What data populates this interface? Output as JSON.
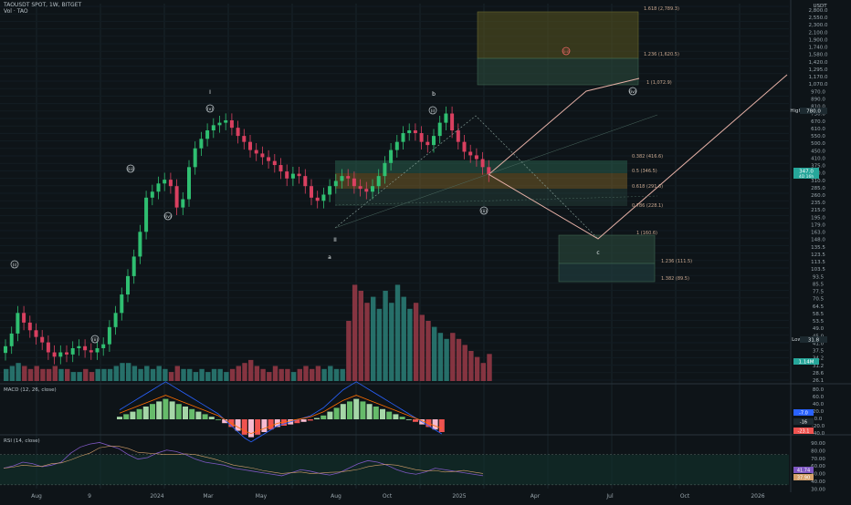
{
  "header": {
    "symbol_line": "TAOUSDT SPOT, 1W, BITGET",
    "volume_label": "Vol · TAO"
  },
  "colors": {
    "background": "#0e1418",
    "up": "#26a69a",
    "down": "#ef5350",
    "up_candle": "#2fbf71",
    "down_candle": "#d94060",
    "macd_line": "#2962ff",
    "signal_line": "#ff6d00",
    "rsi_line": "#7e57c2",
    "rsi_band": "#12352f",
    "wave_label": "#ff6b6b",
    "fib_green": "#2e6b55",
    "fib_orange": "#8a6a2a"
  },
  "axis": {
    "currency": "USDT",
    "price_ticks": [
      "2,800.0",
      "2,550.0",
      "2,300.0",
      "2,100.0",
      "1,900.0",
      "1,740.0",
      "1,580.0",
      "1,420.0",
      "1,295.0",
      "1,170.0",
      "1,070.0",
      "970.0",
      "890.0",
      "810.0",
      "730.0",
      "670.0",
      "610.0",
      "550.0",
      "500.0",
      "450.0",
      "410.0",
      "375.0",
      "340.0",
      "310.0",
      "285.0",
      "260.0",
      "235.0",
      "215.0",
      "195.0",
      "179.0",
      "163.0",
      "148.0",
      "135.5",
      "123.5",
      "113.5",
      "103.5",
      "93.5",
      "85.5",
      "77.5",
      "70.5",
      "64.5",
      "58.5",
      "53.5",
      "49.0",
      "45.0",
      "41.0",
      "37.5",
      "34.2",
      "31.2",
      "28.6",
      "26.1"
    ],
    "last_price": "347.0",
    "last_price_sub": "4D 16h",
    "high_label": "High",
    "high_price": "780.0",
    "low_label": "Low",
    "low_price": "31.8",
    "volume_value": "1.14M",
    "x_labels": [
      "Aug",
      "9",
      "2024",
      "Mar",
      "May",
      "Aug",
      "Oct",
      "2025",
      "Apr",
      "Jul",
      "Oct",
      "2026"
    ]
  },
  "fib_levels": {
    "a1": "1.618 (2,789.3)",
    "a2": "1.236 (1,620.5)",
    "a3": "1 (1,072.9)",
    "r1": "0.382 (416.6)",
    "r2": "0.5 (346.5)",
    "r3": "0.618 (291.6)",
    "r4": "0.786 (228.1)",
    "b1": "1 (160.6)",
    "b2": "1.236 (111.5)",
    "b3": "1.382 (89.5)"
  },
  "wave_labels": {
    "w1": "I",
    "w2": "II",
    "w_a": "a",
    "w_b": "b",
    "w_c": "c",
    "m1": "(i)",
    "m2": "(ii)",
    "m3": "(iii)",
    "m4": "(iv)",
    "m5": "(v)",
    "n1": "(i)",
    "n2": "(ii)",
    "t3": "(iii)",
    "t4": "(iv)"
  },
  "macd": {
    "label": "MACD (12, 26, close)",
    "ticks": [
      "80.0",
      "60.0",
      "40.0",
      "20.0",
      "0.0",
      "-20.0",
      "-40.0"
    ],
    "badge_1": "-7.0",
    "badge_2": "-16",
    "badge_3": "-23.1"
  },
  "rsi": {
    "label": "RSI (14, close)",
    "ticks": [
      "90.00",
      "80.00",
      "70.00",
      "60.00",
      "50.00",
      "40.00",
      "30.00"
    ],
    "badge_1": "41.74",
    "badge_2": "37.90"
  },
  "chart_data": {
    "type": "candlestick",
    "title": "TAOUSDT SPOT, 1W, BITGET",
    "xlabel": "",
    "ylabel": "",
    "y_scale": "log",
    "ylim": [
      26,
      2900
    ],
    "categories": [
      "Aug",
      "9",
      "2024",
      "Mar",
      "May",
      "Aug",
      "Oct",
      "2025",
      "Apr",
      "Jul",
      "Oct",
      "2026"
    ],
    "close_path": [
      41,
      48,
      62,
      55,
      50,
      46,
      43,
      38,
      36,
      38,
      37,
      40,
      41,
      39,
      38,
      40,
      42,
      52,
      62,
      78,
      98,
      125,
      170,
      260,
      280,
      310,
      325,
      300,
      230,
      255,
      380,
      480,
      540,
      600,
      640,
      660,
      680,
      620,
      560,
      520,
      470,
      450,
      430,
      410,
      390,
      360,
      330,
      350,
      340,
      300,
      260,
      250,
      270,
      300,
      320,
      340,
      330,
      300,
      290,
      280,
      300,
      340,
      400,
      470,
      520,
      580,
      600,
      580,
      520,
      500,
      560,
      660,
      740,
      600,
      520,
      460,
      440,
      420,
      380,
      347
    ],
    "forecast_path": [
      347,
      260,
      215,
      185,
      160,
      140,
      125,
      160,
      220,
      300,
      420,
      600,
      850,
      1170
    ],
    "volume_relative": [
      4,
      5,
      6,
      5,
      4,
      5,
      4,
      4,
      5,
      4,
      4,
      3,
      3,
      4,
      3,
      4,
      4,
      4,
      5,
      6,
      6,
      5,
      4,
      5,
      4,
      5,
      4,
      3,
      5,
      4,
      4,
      3,
      4,
      3,
      4,
      4,
      3,
      4,
      5,
      6,
      7,
      5,
      4,
      3,
      5,
      4,
      4,
      3,
      4,
      5,
      4,
      5,
      4,
      5,
      4,
      4,
      20,
      32,
      30,
      26,
      28,
      24,
      30,
      26,
      32,
      28,
      24,
      26,
      22,
      20,
      18,
      16,
      14,
      16,
      14,
      12,
      10,
      8,
      6,
      9
    ],
    "macd_histogram": [
      2,
      4,
      6,
      8,
      10,
      12,
      14,
      16,
      14,
      12,
      10,
      8,
      6,
      4,
      2,
      0,
      -3,
      -6,
      -9,
      -12,
      -14,
      -12,
      -10,
      -8,
      -6,
      -5,
      -4,
      -3,
      -2,
      -1,
      1,
      3,
      6,
      9,
      12,
      14,
      16,
      14,
      12,
      10,
      8,
      6,
      4,
      2,
      0,
      -2,
      -4,
      -6,
      -8,
      -10
    ],
    "rsi_path": [
      52,
      55,
      60,
      58,
      54,
      56,
      60,
      72,
      80,
      84,
      86,
      82,
      78,
      70,
      64,
      66,
      72,
      76,
      74,
      70,
      64,
      60,
      58,
      56,
      52,
      50,
      48,
      46,
      44,
      42,
      46,
      50,
      48,
      45,
      43,
      46,
      52,
      58,
      62,
      60,
      56,
      50,
      46,
      44,
      47,
      52,
      50,
      48,
      46,
      44,
      42
    ]
  }
}
